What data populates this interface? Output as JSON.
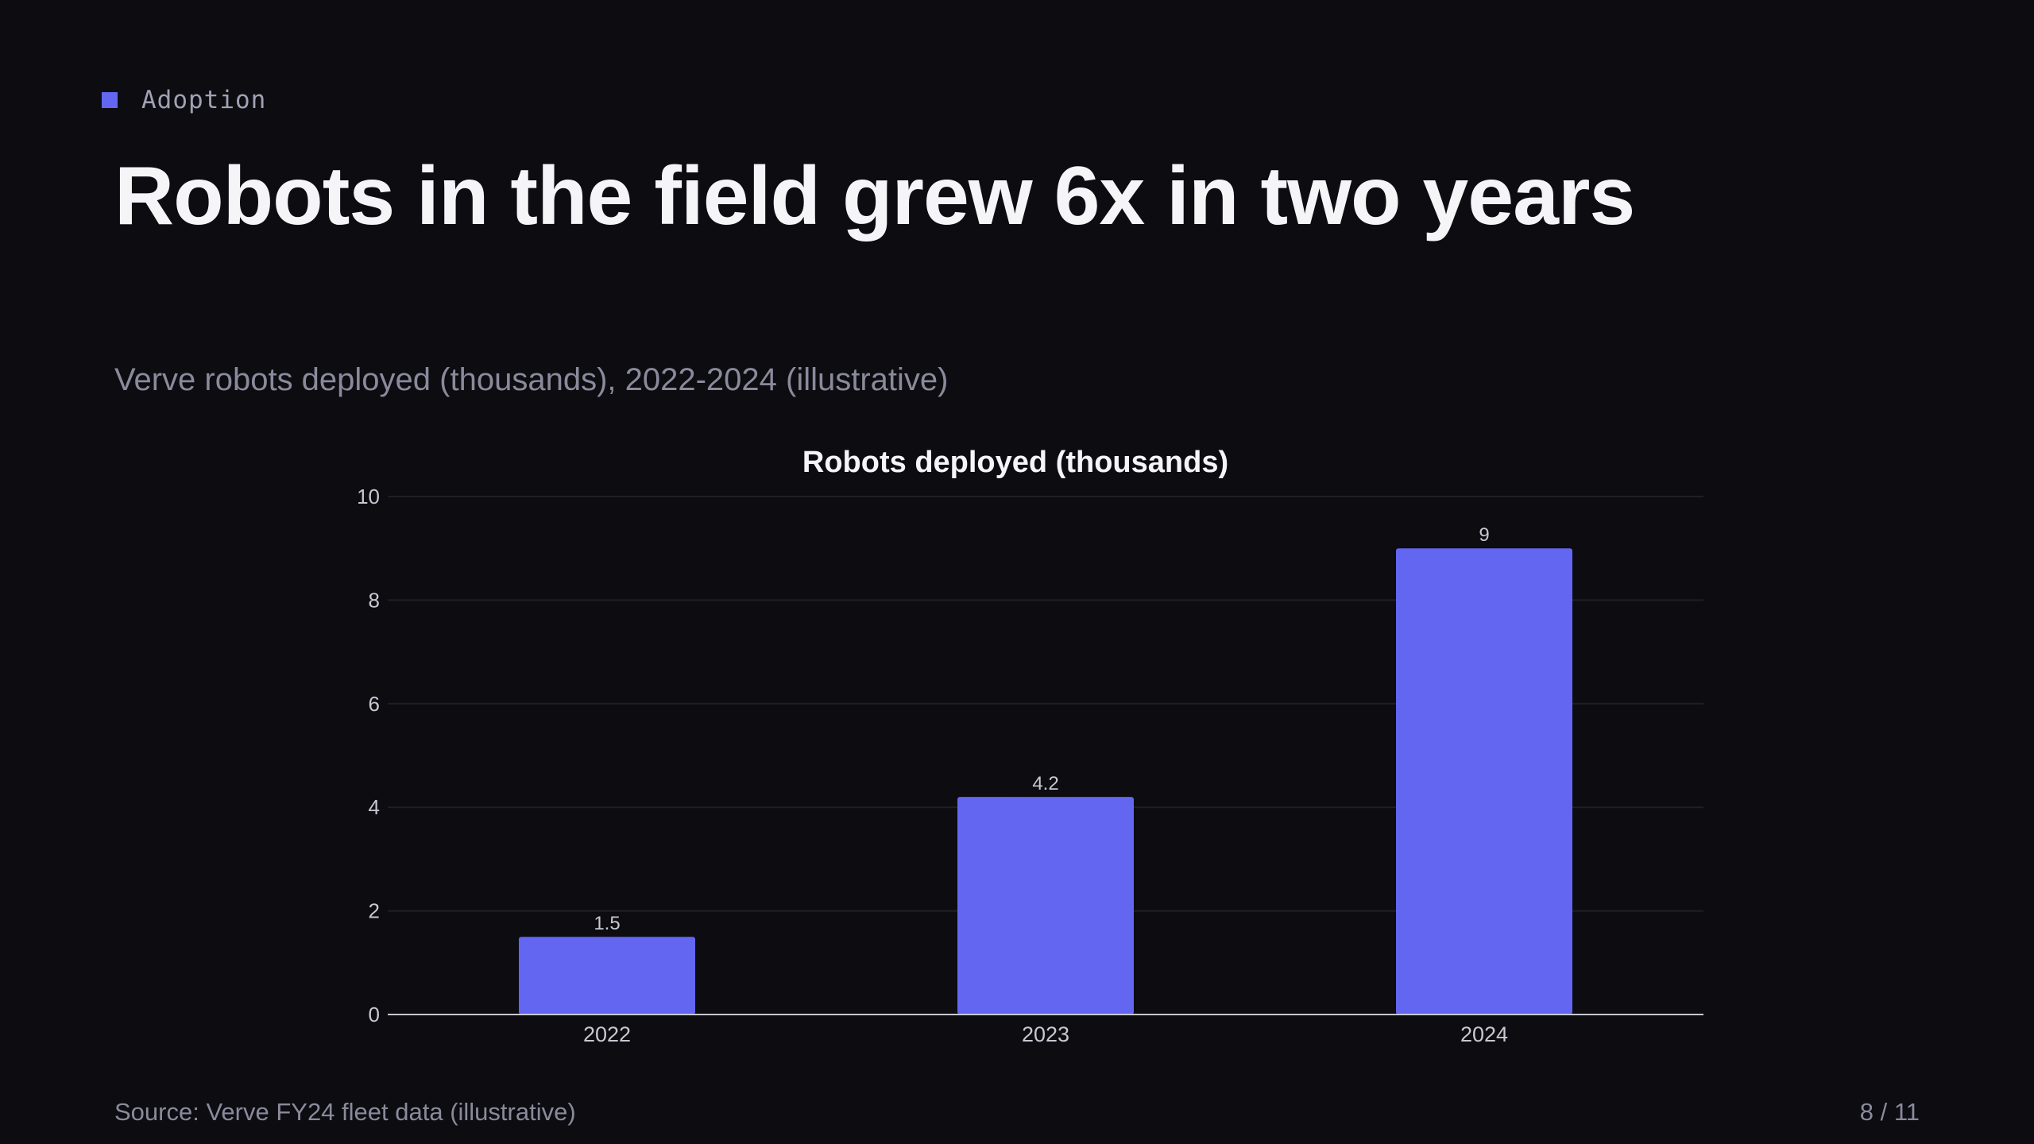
{
  "slide": {
    "eyebrow": "Adoption",
    "title": "Robots in the field grew 6x in two years",
    "subtitle": "Verve robots deployed (thousands), 2022-2024 (illustrative)",
    "source": "Source: Verve FY24 fleet data (illustrative)",
    "page": "8 / 11"
  },
  "colors": {
    "accent": "#6366f1",
    "background": "#0c0c11",
    "text": "#f4f4f6",
    "muted": "#8a8a9c",
    "grid": "#1f1f27",
    "axis": "#c8c8d2"
  },
  "chart_data": {
    "type": "bar",
    "title": "Robots deployed (thousands)",
    "categories": [
      "2022",
      "2023",
      "2024"
    ],
    "values": [
      1.5,
      4.2,
      9
    ],
    "value_labels": [
      "1.5",
      "4.2",
      "9"
    ],
    "xlabel": "",
    "ylabel": "",
    "ylim": [
      0,
      10
    ],
    "yticks": [
      0,
      2,
      4,
      6,
      8,
      10
    ],
    "grid": true,
    "legend": "none"
  }
}
